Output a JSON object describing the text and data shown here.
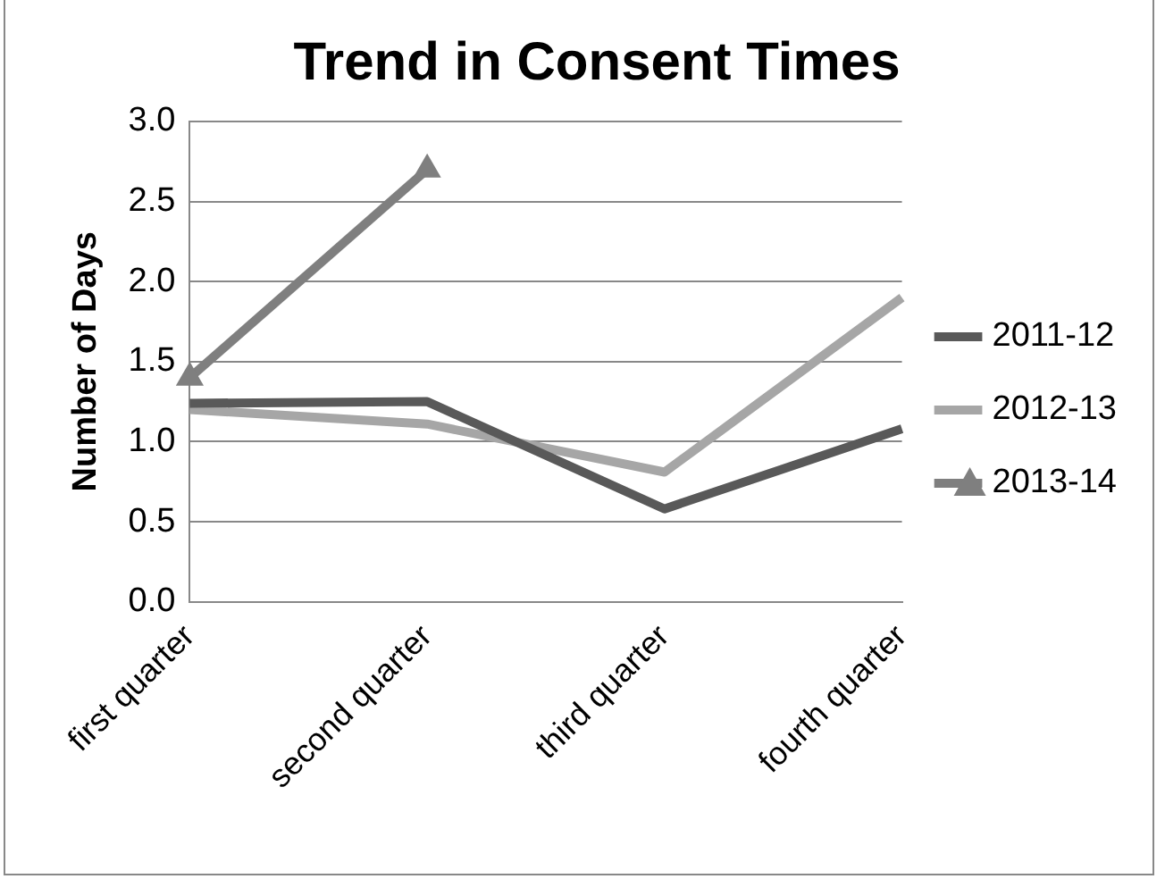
{
  "chart_data": {
    "type": "line",
    "title": "Trend in Consent Times",
    "ylabel": "Number of Days",
    "categories": [
      "first quarter",
      "second quarter",
      "third quarter",
      "fourth quarter"
    ],
    "series": [
      {
        "name": "2011-12",
        "color": "#595959",
        "values": [
          1.24,
          1.25,
          0.58,
          1.08
        ],
        "marker": "none"
      },
      {
        "name": "2012-13",
        "color": "#a6a6a6",
        "values": [
          1.2,
          1.11,
          0.81,
          1.9
        ],
        "marker": "none"
      },
      {
        "name": "2013-14",
        "color": "#7f7f7f",
        "values": [
          1.4,
          2.7,
          null,
          null
        ],
        "marker": "triangle"
      }
    ],
    "ylim": [
      0,
      3
    ],
    "yticks": [
      {
        "value": 0,
        "label": "0.0"
      },
      {
        "value": 0.5,
        "label": "0.5"
      },
      {
        "value": 1,
        "label": "1.0"
      },
      {
        "value": 1.5,
        "label": "1.5"
      },
      {
        "value": 2,
        "label": "2.0"
      },
      {
        "value": 2.5,
        "label": "2.5"
      },
      {
        "value": 3,
        "label": "3.0"
      }
    ],
    "grid": "y",
    "legend": "right",
    "line_style": "solid"
  }
}
